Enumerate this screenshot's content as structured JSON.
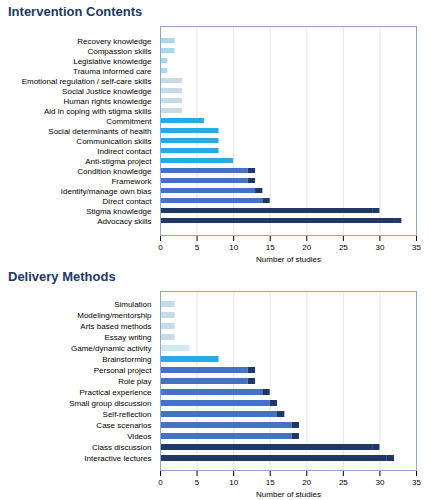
{
  "chart_data": [
    {
      "type": "bar",
      "title": "Intervention Contents",
      "orientation": "horizontal",
      "stacked": true,
      "xlabel": "Number of studies",
      "categories": [
        "Recovery knowledge",
        "Compassion skills",
        "Legislative knowledge",
        "Trauma informed care",
        "Emotional regulation / self-care skills",
        "Social Justice knowledge",
        "Human rights knowledge",
        "Aid in coping with stigma skills",
        "Commitment",
        "Social determinants of health",
        "Communication skills",
        "Indirect contact",
        "Anti-stigma project",
        "Condition knowledge",
        "Framework",
        "Identify/manage own bias",
        "Direct contact",
        "Stigma knowledge",
        "Advocacy skills"
      ],
      "series": [
        {
          "colors": [
            "#A8D8EA",
            "#A8D8EA",
            "#A8D8EA",
            "#A8D8EA",
            "#C5DCE8",
            "#C5DCE8",
            "#C5DCE8",
            "#C5DCE8",
            "#29ABE2",
            "#29ABE2",
            "#29ABE2",
            "#29ABE2",
            "#29ABE2",
            "#4472C4",
            "#4472C4",
            "#4472C4",
            "#4472C4",
            "#1F3864",
            "#1F3864"
          ],
          "values": [
            2,
            2,
            1,
            1,
            3,
            3,
            3,
            3,
            6,
            8,
            8,
            8,
            10,
            12,
            12,
            13,
            14,
            29,
            32
          ]
        },
        {
          "color": "#1F3864",
          "values": [
            0,
            0,
            0,
            0,
            0,
            0,
            0,
            0,
            0,
            0,
            0,
            0,
            0,
            1,
            1,
            1,
            1,
            1,
            1
          ]
        }
      ],
      "xlim": [
        0,
        35
      ],
      "xticks": [
        0,
        5,
        10,
        15,
        20,
        25,
        30,
        35
      ],
      "grid": true
    },
    {
      "type": "bar",
      "title": "Delivery Methods",
      "orientation": "horizontal",
      "stacked": true,
      "xlabel": "Number of studies",
      "categories": [
        "Simulation",
        "Modeling/mentorship",
        "Arts based methods",
        "Essay writing",
        "Game/dynamic activity",
        "Brainstorming",
        "Personal project",
        "Role play",
        "Practical experience",
        "Small group discussion",
        "Self-reflection",
        "Case scenarios",
        "Videos",
        "Class discussion",
        "Interactive lectures"
      ],
      "series": [
        {
          "colors": [
            "#C5DCE8",
            "#C5DCE8",
            "#C5DCE8",
            "#C5DCE8",
            "#D0E8F0",
            "#29ABE2",
            "#4472C4",
            "#4472C4",
            "#4472C4",
            "#4472C4",
            "#4472C4",
            "#4472C4",
            "#4472C4",
            "#1F3864",
            "#1F3864"
          ],
          "values": [
            2,
            2,
            2,
            2,
            4,
            8,
            12,
            12,
            14,
            15,
            16,
            18,
            18,
            29,
            31
          ]
        },
        {
          "color": "#1F3864",
          "values": [
            0,
            0,
            0,
            0,
            0,
            0,
            1,
            1,
            1,
            1,
            1,
            1,
            1,
            1,
            1
          ]
        }
      ],
      "xlim": [
        0,
        35
      ],
      "xticks": [
        0,
        5,
        10,
        15,
        20,
        25,
        30,
        35
      ],
      "grid": true
    }
  ]
}
